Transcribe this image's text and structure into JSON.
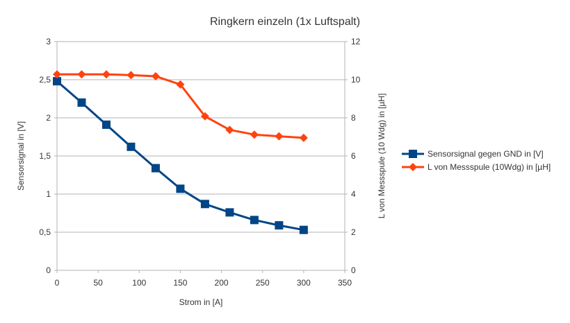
{
  "chart_data": {
    "type": "line",
    "title": "Ringkern einzeln (1x Luftspalt)",
    "xlabel": "Strom in [A]",
    "ylabel": "Sensorsignal in [V]",
    "y2label": "L von Messspule (10 Wdg) in [µH]",
    "xlim": [
      0,
      350
    ],
    "ylim": [
      0,
      3
    ],
    "y2lim": [
      0,
      12
    ],
    "xticks": [
      "0",
      "50",
      "100",
      "150",
      "200",
      "250",
      "300",
      "350"
    ],
    "yticks": [
      "0",
      "0,5",
      "1",
      "1,5",
      "2",
      "2,5",
      "3"
    ],
    "y2ticks": [
      "0",
      "2",
      "4",
      "6",
      "8",
      "10",
      "12"
    ],
    "grid": true,
    "legend_position": "right",
    "x": [
      0,
      30,
      60,
      90,
      120,
      150,
      180,
      210,
      240,
      270,
      300
    ],
    "series": [
      {
        "name": "Sensorsignal gegen GND in [V]",
        "axis": "left",
        "color": "#004586",
        "marker": "square",
        "values": [
          2.48,
          2.2,
          1.91,
          1.62,
          1.34,
          1.07,
          0.87,
          0.76,
          0.66,
          0.59,
          0.53
        ]
      },
      {
        "name": "L von Messspule (10Wdg) in [µH]",
        "axis": "right",
        "color": "#ff420e",
        "marker": "diamond",
        "values": [
          10.28,
          10.28,
          10.28,
          10.24,
          10.18,
          9.75,
          8.08,
          7.37,
          7.12,
          7.03,
          6.95
        ]
      }
    ]
  }
}
